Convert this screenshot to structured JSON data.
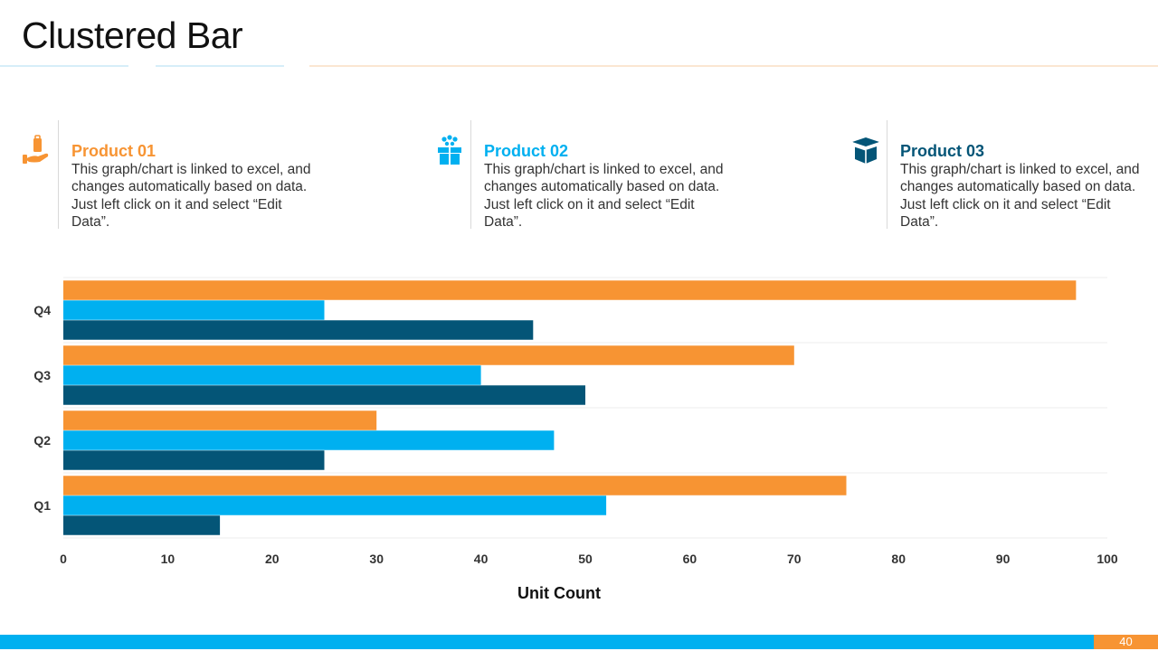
{
  "slide": {
    "title": "Clustered Bar",
    "page_number": "40"
  },
  "colors": {
    "orange": "#f79433",
    "light_blue": "#00b0f0",
    "dark_blue": "#045577",
    "rule_light_blue": "#d6eef9",
    "rule_peach": "#fbe6d2"
  },
  "products": [
    {
      "name": "Product 01",
      "icon": "hand-holding-bag-icon",
      "color": "#f79433",
      "description": "This graph/chart is linked to excel, and changes automatically based on data. Just left click on it and select “Edit Data”."
    },
    {
      "name": "Product 02",
      "icon": "gift-box-icon",
      "color": "#00b0f0",
      "description": "This graph/chart is linked to excel, and changes automatically based on data. Just left click on it and select “Edit Data”."
    },
    {
      "name": "Product 03",
      "icon": "open-box-icon",
      "color": "#045577",
      "description": "This graph/chart is linked to excel, and changes automatically based on data. Just left click on it and select “Edit Data”."
    }
  ],
  "chart_data": {
    "type": "bar",
    "orientation": "horizontal",
    "categories": [
      "Q1",
      "Q2",
      "Q3",
      "Q4"
    ],
    "series": [
      {
        "values": [
          75,
          30,
          70,
          97
        ],
        "color": "#f79433"
      },
      {
        "values": [
          52,
          47,
          40,
          25
        ],
        "color": "#00b0f0"
      },
      {
        "values": [
          15,
          25,
          50,
          45
        ],
        "color": "#045577"
      }
    ],
    "xlabel": "Unit Count",
    "xlim": [
      0,
      100
    ],
    "xticks": [
      0,
      10,
      20,
      30,
      40,
      50,
      60,
      70,
      80,
      90,
      100
    ],
    "grid": "horizontal category separators",
    "legend": "none"
  }
}
